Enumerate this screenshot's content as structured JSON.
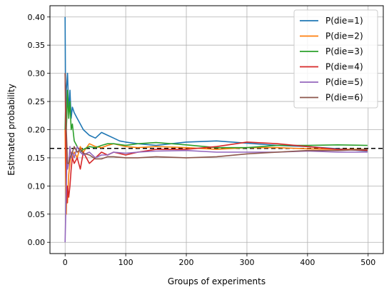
{
  "chart_data": {
    "type": "line",
    "title": "",
    "xlabel": "Groups of experiments",
    "ylabel": "Estimated probability",
    "xlim": [
      -25,
      525
    ],
    "ylim": [
      -0.02,
      0.42
    ],
    "xticks": [
      0,
      100,
      200,
      300,
      400,
      500
    ],
    "yticks": [
      0.0,
      0.05,
      0.1,
      0.15,
      0.2,
      0.25,
      0.3,
      0.35,
      0.4
    ],
    "xtick_labels": [
      "0",
      "100",
      "200",
      "300",
      "400",
      "500"
    ],
    "ytick_labels": [
      "0.00",
      "0.05",
      "0.10",
      "0.15",
      "0.20",
      "0.25",
      "0.30",
      "0.35",
      "0.40"
    ],
    "grid": true,
    "legend_position": "top-right",
    "reference_line": {
      "y": 0.1667,
      "style": "dashed",
      "color": "#000000"
    },
    "series": [
      {
        "name": "P(die=1)",
        "color": "#1f77b4",
        "x": [
          0,
          1,
          2,
          4,
          6,
          8,
          10,
          12,
          15,
          20,
          25,
          30,
          40,
          50,
          60,
          70,
          80,
          90,
          100,
          120,
          150,
          200,
          250,
          300,
          350,
          400,
          450,
          499
        ],
        "y": [
          0.4,
          0.2,
          0.27,
          0.3,
          0.23,
          0.27,
          0.22,
          0.24,
          0.23,
          0.22,
          0.21,
          0.2,
          0.19,
          0.185,
          0.195,
          0.19,
          0.185,
          0.18,
          0.178,
          0.175,
          0.172,
          0.178,
          0.18,
          0.176,
          0.172,
          0.17,
          0.166,
          0.162
        ]
      },
      {
        "name": "P(die=2)",
        "color": "#ff7f0e",
        "x": [
          0,
          1,
          2,
          3,
          4,
          6,
          8,
          10,
          12,
          15,
          20,
          25,
          30,
          40,
          50,
          60,
          70,
          80,
          100,
          120,
          150,
          200,
          250,
          300,
          350,
          400,
          450,
          499
        ],
        "y": [
          0.2,
          0.1,
          0.05,
          0.1,
          0.07,
          0.12,
          0.14,
          0.16,
          0.15,
          0.16,
          0.15,
          0.17,
          0.16,
          0.175,
          0.17,
          0.168,
          0.172,
          0.175,
          0.17,
          0.168,
          0.17,
          0.168,
          0.165,
          0.168,
          0.168,
          0.166,
          0.165,
          0.165
        ]
      },
      {
        "name": "P(die=3)",
        "color": "#2ca02c",
        "x": [
          0,
          1,
          2,
          3,
          4,
          6,
          8,
          10,
          12,
          15,
          20,
          25,
          30,
          40,
          50,
          60,
          70,
          80,
          100,
          120,
          150,
          200,
          250,
          300,
          350,
          400,
          450,
          499
        ],
        "y": [
          0.2,
          0.25,
          0.2,
          0.23,
          0.27,
          0.22,
          0.25,
          0.2,
          0.21,
          0.18,
          0.17,
          0.16,
          0.165,
          0.17,
          0.168,
          0.172,
          0.175,
          0.175,
          0.172,
          0.175,
          0.177,
          0.173,
          0.168,
          0.168,
          0.172,
          0.172,
          0.173,
          0.172
        ]
      },
      {
        "name": "P(die=4)",
        "color": "#d62728",
        "x": [
          0,
          1,
          2,
          3,
          4,
          6,
          8,
          10,
          12,
          15,
          20,
          25,
          30,
          40,
          50,
          60,
          70,
          80,
          100,
          120,
          150,
          200,
          250,
          300,
          350,
          400,
          450,
          499
        ],
        "y": [
          0.3,
          0.2,
          0.1,
          0.07,
          0.1,
          0.08,
          0.1,
          0.13,
          0.15,
          0.14,
          0.15,
          0.13,
          0.16,
          0.14,
          0.15,
          0.16,
          0.155,
          0.16,
          0.155,
          0.16,
          0.165,
          0.165,
          0.17,
          0.178,
          0.175,
          0.17,
          0.165,
          0.163
        ]
      },
      {
        "name": "P(die=5)",
        "color": "#9467bd",
        "x": [
          0,
          1,
          2,
          3,
          4,
          6,
          8,
          10,
          12,
          15,
          20,
          25,
          30,
          40,
          50,
          60,
          70,
          80,
          100,
          120,
          150,
          200,
          250,
          300,
          350,
          400,
          450,
          499
        ],
        "y": [
          0.0,
          0.05,
          0.1,
          0.15,
          0.13,
          0.14,
          0.17,
          0.15,
          0.16,
          0.15,
          0.17,
          0.16,
          0.155,
          0.16,
          0.15,
          0.155,
          0.155,
          0.16,
          0.158,
          0.16,
          0.162,
          0.163,
          0.16,
          0.16,
          0.16,
          0.162,
          0.16,
          0.16
        ]
      },
      {
        "name": "P(die=6)",
        "color": "#8c564b",
        "x": [
          0,
          1,
          2,
          3,
          4,
          6,
          8,
          10,
          12,
          15,
          20,
          25,
          30,
          40,
          50,
          60,
          70,
          80,
          100,
          120,
          150,
          200,
          250,
          300,
          350,
          400,
          450,
          499
        ],
        "y": [
          0.3,
          0.25,
          0.2,
          0.17,
          0.14,
          0.14,
          0.15,
          0.155,
          0.16,
          0.17,
          0.16,
          0.165,
          0.158,
          0.155,
          0.148,
          0.148,
          0.152,
          0.152,
          0.15,
          0.15,
          0.152,
          0.15,
          0.152,
          0.157,
          0.16,
          0.163,
          0.163,
          0.165
        ]
      }
    ]
  }
}
